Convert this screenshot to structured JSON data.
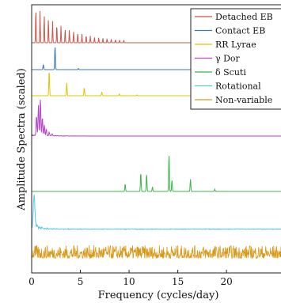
{
  "chart_data": {
    "type": "line",
    "xlabel": "Frequency (cycles/day)",
    "ylabel": "Amplitude Spectra (scaled)",
    "xlim": [
      0,
      26
    ],
    "xticks": [
      0,
      5,
      10,
      15,
      20
    ],
    "grid": false,
    "legend_position": "top-right",
    "series": [
      {
        "name": "Detached EB",
        "color": "#c8564a",
        "kind": "comb",
        "f0": 0.43,
        "harmonics": 22,
        "decay": 0.13
      },
      {
        "name": "Contact EB",
        "color": "#3a78b5",
        "kind": "peaks",
        "peaks": [
          [
            1.2,
            0.22
          ],
          [
            2.4,
            1.0
          ],
          [
            4.8,
            0.05
          ]
        ]
      },
      {
        "name": "RR Lyrae",
        "color": "#e3c300",
        "kind": "peaks",
        "peaks": [
          [
            1.8,
            1.0
          ],
          [
            3.6,
            0.5
          ],
          [
            5.4,
            0.32
          ],
          [
            7.2,
            0.15
          ],
          [
            9.0,
            0.07
          ],
          [
            10.8,
            0.03
          ]
        ]
      },
      {
        "name": "γ Dor",
        "color": "#b246c6",
        "kind": "cluster",
        "peaks": [
          [
            0.5,
            0.55
          ],
          [
            0.7,
            0.85
          ],
          [
            0.9,
            1.0
          ],
          [
            1.1,
            0.5
          ],
          [
            1.3,
            0.3
          ],
          [
            1.5,
            0.18
          ],
          [
            1.8,
            0.1
          ],
          [
            2.1,
            0.06
          ]
        ]
      },
      {
        "name": "δ Scuti",
        "color": "#3bb54a",
        "kind": "peaks",
        "peaks": [
          [
            9.6,
            0.2
          ],
          [
            11.2,
            0.5
          ],
          [
            11.8,
            0.45
          ],
          [
            12.4,
            0.12
          ],
          [
            14.1,
            1.0
          ],
          [
            14.4,
            0.3
          ],
          [
            16.3,
            0.32
          ],
          [
            18.8,
            0.06
          ]
        ]
      },
      {
        "name": "Rotational",
        "color": "#5bc6e8",
        "kind": "decay",
        "peak_freq": 0.25
      },
      {
        "name": "Non-variable",
        "color": "#d99a1b",
        "kind": "noise"
      }
    ]
  }
}
